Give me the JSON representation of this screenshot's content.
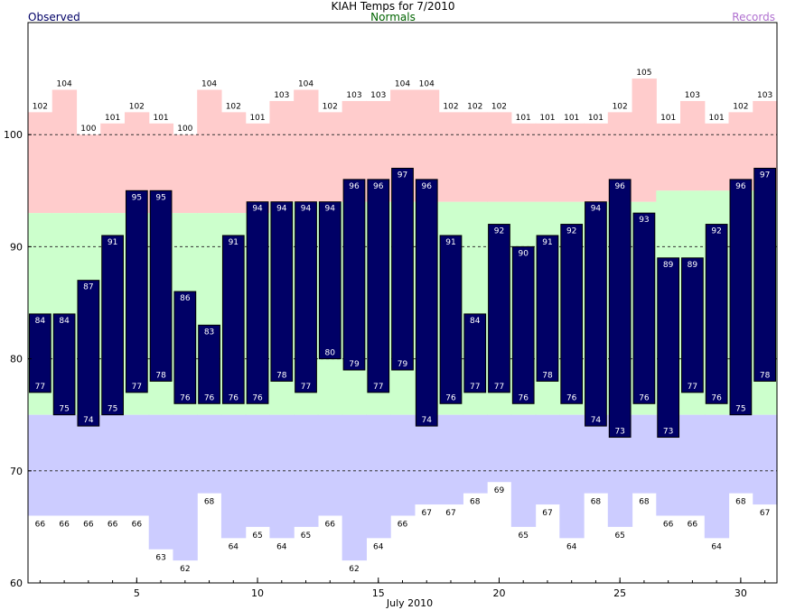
{
  "header": {
    "title": "KIAH Temps for 7/2010",
    "observed_label": "Observed",
    "normals_label": "Normals",
    "records_label": "Records"
  },
  "colors": {
    "observed_bar": "#000066",
    "record_high_band": "#ffcccc",
    "normal_band": "#ccffcc",
    "record_low_band": "#ccccff",
    "normals_text": "#006400",
    "records_text": "#b070d0"
  },
  "chart_data": {
    "type": "bar",
    "title": "KIAH Temps for 7/2010",
    "xlabel": "July 2010",
    "ylabel": "",
    "days": [
      1,
      2,
      3,
      4,
      5,
      6,
      7,
      8,
      9,
      10,
      11,
      12,
      13,
      14,
      15,
      16,
      17,
      18,
      19,
      20,
      21,
      22,
      23,
      24,
      25,
      26,
      27,
      28,
      29,
      30,
      31
    ],
    "x_ticks": [
      5,
      10,
      15,
      20,
      25,
      30
    ],
    "y_ticks": [
      60,
      70,
      80,
      90,
      100
    ],
    "ylim": [
      60,
      110
    ],
    "grid": "dashed at 70, 80, 90, 100",
    "series": [
      {
        "name": "Observed",
        "type": "range",
        "high": [
          84,
          84,
          87,
          91,
          95,
          95,
          86,
          83,
          91,
          94,
          94,
          94,
          94,
          96,
          96,
          97,
          96,
          91,
          84,
          92,
          90,
          91,
          92,
          94,
          96,
          93,
          89,
          89,
          92,
          96,
          97
        ],
        "low": [
          77,
          75,
          74,
          75,
          77,
          78,
          76,
          76,
          76,
          76,
          78,
          77,
          80,
          79,
          77,
          79,
          74,
          76,
          77,
          77,
          76,
          78,
          76,
          74,
          73,
          76,
          73,
          77,
          76,
          75,
          78
        ]
      },
      {
        "name": "Normals",
        "type": "band",
        "high": [
          93,
          93,
          93,
          93,
          93,
          93,
          93,
          93,
          93,
          93,
          94,
          94,
          94,
          94,
          94,
          94,
          94,
          94,
          94,
          94,
          94,
          94,
          94,
          94,
          94,
          94,
          95,
          95,
          95,
          95,
          95
        ],
        "low": [
          75,
          75,
          75,
          75,
          75,
          75,
          75,
          75,
          75,
          75,
          75,
          75,
          75,
          75,
          75,
          75,
          75,
          75,
          75,
          75,
          75,
          75,
          75,
          75,
          75,
          75,
          75,
          75,
          75,
          75,
          75
        ]
      },
      {
        "name": "Records",
        "type": "band",
        "high": [
          102,
          104,
          100,
          101,
          102,
          101,
          100,
          104,
          102,
          101,
          103,
          104,
          102,
          103,
          103,
          104,
          104,
          102,
          102,
          102,
          101,
          101,
          101,
          101,
          102,
          105,
          101,
          103,
          101,
          102,
          103
        ],
        "low": [
          66,
          66,
          66,
          66,
          66,
          63,
          62,
          68,
          64,
          65,
          64,
          65,
          66,
          62,
          64,
          66,
          67,
          67,
          68,
          69,
          65,
          67,
          64,
          68,
          65,
          68,
          66,
          66,
          64,
          68,
          67
        ]
      }
    ]
  }
}
